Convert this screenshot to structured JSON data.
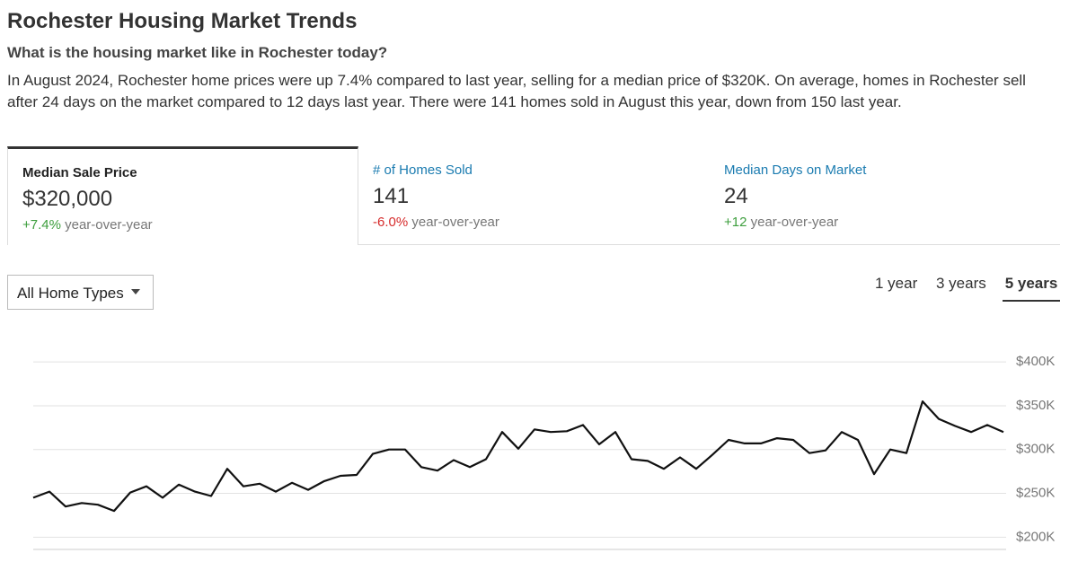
{
  "header": {
    "title": "Rochester Housing Market Trends",
    "subtitle": "What is the housing market like in Rochester today?",
    "summary": "In August 2024, Rochester home prices were up 7.4% compared to last year, selling for a median price of $320K. On average, homes in Rochester sell after 24 days on the market compared to 12 days last year. There were 141 homes sold in August this year, down from 150 last year."
  },
  "stats": [
    {
      "label": "Median Sale Price",
      "value": "$320,000",
      "change": "+7.4%",
      "suffix": "year-over-year"
    },
    {
      "label": "# of Homes Sold",
      "value": "141",
      "change": "-6.0%",
      "suffix": "year-over-year"
    },
    {
      "label": "Median Days on Market",
      "value": "24",
      "change": "+12",
      "suffix": "year-over-year"
    }
  ],
  "filter": {
    "label": "All Home Types"
  },
  "ranges": [
    "1 year",
    "3 years",
    "5 years"
  ],
  "chart_data": {
    "type": "line",
    "color": "#111111",
    "grid": true,
    "values": [
      245000,
      252000,
      235000,
      239000,
      237000,
      230000,
      251000,
      258000,
      245000,
      260000,
      252000,
      247000,
      278000,
      258000,
      261000,
      252000,
      262000,
      254000,
      264000,
      270000,
      271000,
      295000,
      300000,
      300000,
      280000,
      276000,
      288000,
      280000,
      289000,
      320000,
      301000,
      323000,
      320000,
      321000,
      328000,
      306000,
      320000,
      289000,
      287000,
      278000,
      291000,
      278000,
      294000,
      311000,
      307000,
      307000,
      313000,
      311000,
      296000,
      299000,
      320000,
      311000,
      272000,
      300000,
      296000,
      355000,
      335000,
      327000,
      320000,
      328000,
      320000
    ],
    "ylim": [
      186000,
      410000
    ],
    "yticks": [
      {
        "value": 200000,
        "label": "$200K"
      },
      {
        "value": 250000,
        "label": "$250K"
      },
      {
        "value": 300000,
        "label": "$300K"
      },
      {
        "value": 350000,
        "label": "$350K"
      },
      {
        "value": 400000,
        "label": "$400K"
      }
    ]
  }
}
